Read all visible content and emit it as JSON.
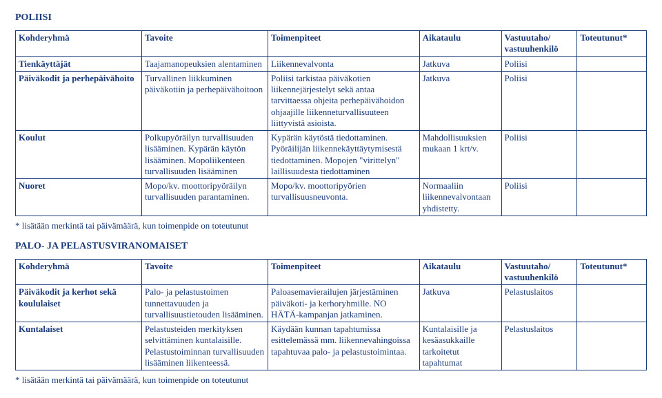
{
  "section1": {
    "title": "POLIISI",
    "headers": {
      "c1": "Kohderyhmä",
      "c2": "Tavoite",
      "c3": "Toimenpiteet",
      "c4": "Aikataulu",
      "c5": "Vastuutaho/ vastuuhenkilö",
      "c6": "Toteutunut*"
    },
    "rows": [
      {
        "c1": "Tienkäyttäjät",
        "c2": "Taajamanopeuksien alentaminen",
        "c3": "Liikennevalvonta",
        "c4": "Jatkuva",
        "c5": "Poliisi",
        "c6": ""
      },
      {
        "c1": "Päiväkodit ja perhepäivähoito",
        "c2": "Turvallinen liikkuminen päiväkotiin ja perhepäivähoitoon",
        "c3": "Poliisi tarkistaa päiväkotien liikennejärjestelyt sekä antaa tarvittaessa ohjeita perhepäivähoidon ohjaajille liikenneturvallisuuteen liittyvistä asioista.",
        "c4": "Jatkuva",
        "c5": "Poliisi",
        "c6": ""
      },
      {
        "c1": "Koulut",
        "c2": "Polkupyöräilyn turvallisuuden lisääminen. Kypärän käytön lisääminen. Mopoliikenteen turvallisuuden lisääminen",
        "c3": "Kypärän käytöstä tiedottaminen. Pyöräilijän liikennekäyttäytymisestä tiedottaminen. Mopojen \"virittelyn\" laillisuudesta tiedottaminen",
        "c4": "Mahdollisuuksien mukaan 1 krt/v.",
        "c5": "Poliisi",
        "c6": ""
      },
      {
        "c1": "Nuoret",
        "c2": "Mopo/kv. moottoripyöräilyn turvallisuuden parantaminen.",
        "c3": "Mopo/kv. moottoripyörien turvallisuusneuvonta.",
        "c4": "Normaaliin liikennevalvontaan yhdistetty.",
        "c5": "Poliisi",
        "c6": ""
      }
    ],
    "footnote": "* lisätään merkintä tai päivämäärä, kun toimenpide on toteutunut"
  },
  "section2": {
    "title": "PALO- JA PELASTUSVIRANOMAISET",
    "headers": {
      "c1": "Kohderyhmä",
      "c2": "Tavoite",
      "c3": "Toimenpiteet",
      "c4": "Aikataulu",
      "c5": "Vastuutaho/ vastuuhenkilö",
      "c6": "Toteutunut*"
    },
    "rows": [
      {
        "c1": "Päiväkodit ja kerhot sekä koululaiset",
        "c2": "Palo- ja pelastustoimen tunnettavuuden ja turvallisuustietouden lisääminen.",
        "c3": "Paloasemavierailujen järjestäminen päiväkoti- ja kerhoryhmille. NO HÄTÄ-kampanjan jatkaminen.",
        "c4": "Jatkuva",
        "c5": "Pelastuslaitos",
        "c6": ""
      },
      {
        "c1": "Kuntalaiset",
        "c2": "Pelastusteiden merkityksen selvittäminen kuntalaisille. Pelastustoiminnan turvallisuuden lisääminen liikenteessä.",
        "c3": "Käydään kunnan tapahtumissa esittelemässä mm. liikennevahingoissa tapahtuvaa palo- ja pelastustoimintaa.",
        "c4": "Kuntalaisille ja kesäasukkaille tarkoitetut tapahtumat",
        "c5": "Pelastuslaitos",
        "c6": ""
      }
    ],
    "footnote": "* lisätään merkintä tai päivämäärä, kun toimenpide on toteutunut"
  }
}
